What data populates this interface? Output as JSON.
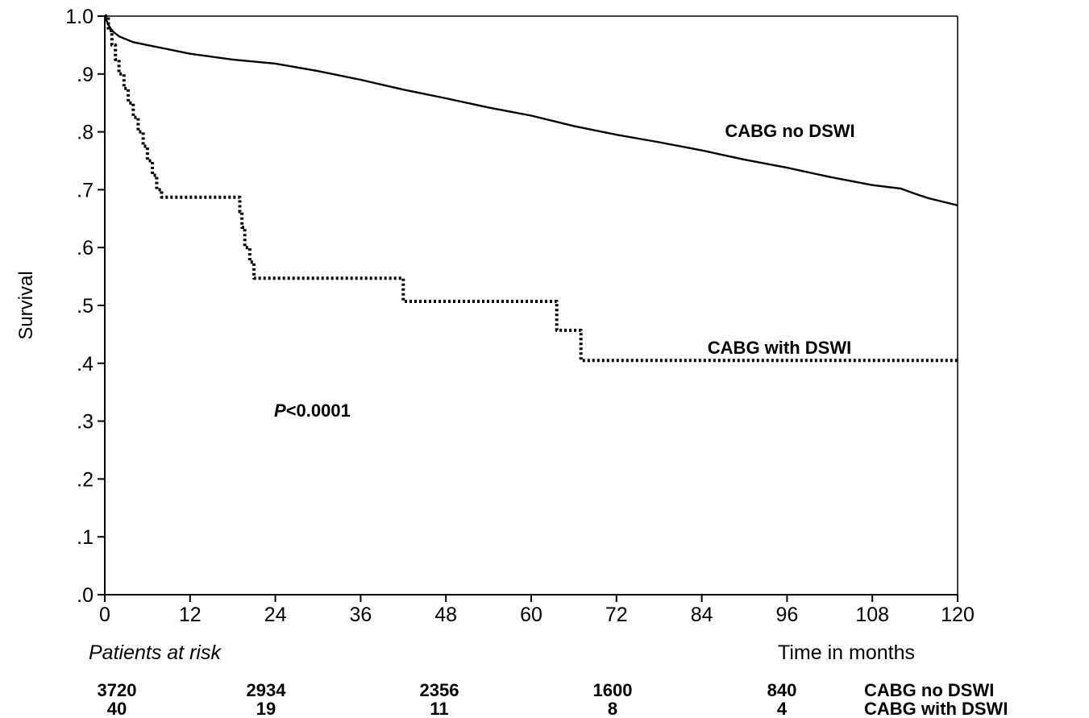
{
  "chart_data": {
    "type": "line",
    "title": "",
    "ylabel": "Survival",
    "xlabel": "Time in months",
    "xlim": [
      0,
      120
    ],
    "ylim": [
      0,
      1.0
    ],
    "x_ticks": [
      "0",
      "12",
      "24",
      "36",
      "48",
      "60",
      "72",
      "84",
      "96",
      "108",
      "120"
    ],
    "y_ticks": [
      ".0",
      ".1",
      ".2",
      ".3",
      ".4",
      ".5",
      ".6",
      ".7",
      ".8",
      ".9",
      "1.0"
    ],
    "grid": false,
    "annotation": {
      "italic": "P",
      "text": "<0.0001"
    },
    "series": [
      {
        "name": "CABG no DSWI",
        "style": "solid",
        "x": [
          0,
          0.5,
          1,
          2,
          4,
          6,
          8,
          12,
          18,
          24,
          30,
          36,
          42,
          48,
          54,
          60,
          66,
          72,
          78,
          84,
          90,
          96,
          102,
          108,
          112,
          114,
          116,
          118,
          120
        ],
        "y": [
          1.0,
          0.985,
          0.975,
          0.965,
          0.955,
          0.95,
          0.945,
          0.935,
          0.925,
          0.918,
          0.905,
          0.89,
          0.873,
          0.858,
          0.842,
          0.828,
          0.81,
          0.795,
          0.782,
          0.768,
          0.752,
          0.738,
          0.722,
          0.708,
          0.702,
          0.693,
          0.685,
          0.679,
          0.673
        ]
      },
      {
        "name": "CABG with DSWI",
        "style": "dotted",
        "x": [
          0,
          0.5,
          1,
          1.5,
          2,
          2.7,
          3.3,
          4,
          4.7,
          5.4,
          6,
          6.7,
          7.3,
          8,
          19,
          19.3,
          19.7,
          20.4,
          21,
          41.5,
          42,
          63,
          63.6,
          66.3,
          67,
          120
        ],
        "y": [
          1.0,
          0.975,
          0.95,
          0.925,
          0.9,
          0.875,
          0.85,
          0.825,
          0.8,
          0.775,
          0.75,
          0.725,
          0.7,
          0.687,
          0.662,
          0.635,
          0.6,
          0.575,
          0.547,
          0.547,
          0.507,
          0.507,
          0.457,
          0.457,
          0.405,
          0.405
        ]
      }
    ]
  },
  "labels": {
    "series_no": "CABG no DSWI",
    "series_with": "CABG with DSWI"
  },
  "risk_table": {
    "title": "Patients at risk",
    "rows": [
      {
        "name": "CABG no DSWI",
        "values": [
          "3720",
          "2934",
          "2356",
          "1600",
          "840"
        ]
      },
      {
        "name": "CABG with DSWI",
        "values": [
          "40",
          "19",
          "11",
          "8",
          "4"
        ]
      }
    ]
  }
}
